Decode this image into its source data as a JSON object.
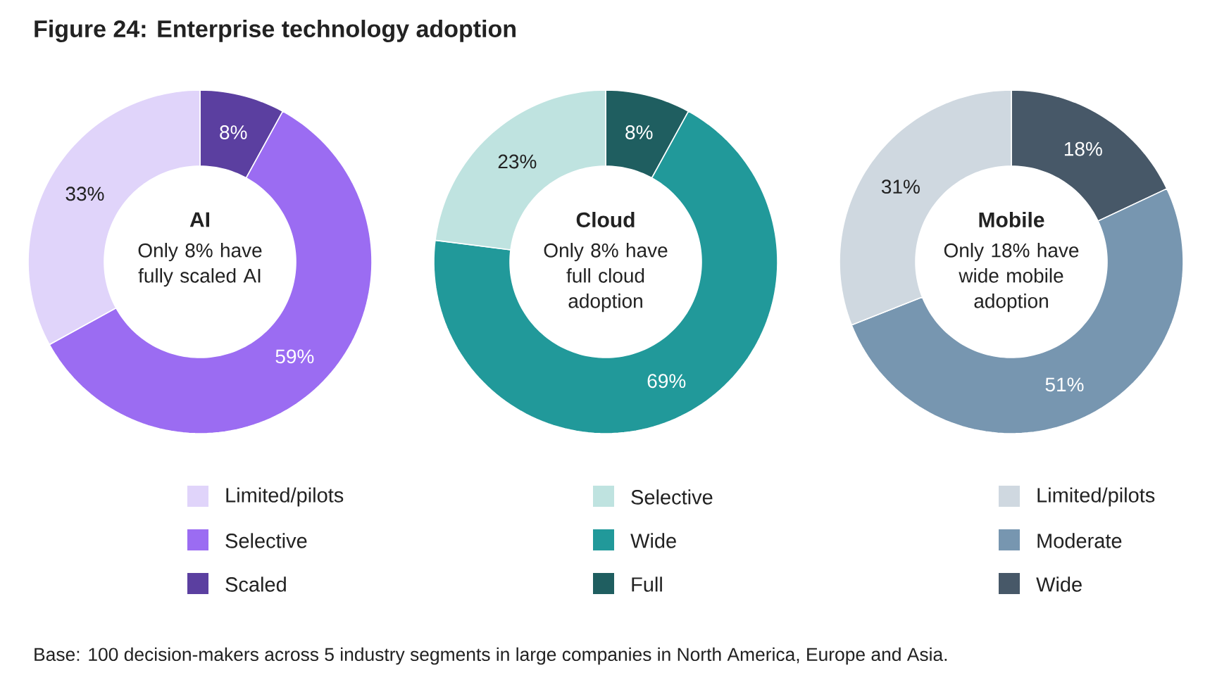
{
  "chart_data": [
    {
      "type": "other",
      "title": "Figure 24: Enterprise technology adoption",
      "annotations": [
        "Base: 100 decision-makers across 5 industry segments in large companies in North America, Europe and Asia."
      ]
    },
    {
      "type": "donut",
      "title": "AI",
      "subtitle": "Only 8% have fully scaled AI",
      "categories": [
        "Limited/pilots",
        "Selective",
        "Scaled"
      ],
      "values": [
        33,
        59,
        8
      ],
      "value_labels": [
        "33%",
        "59%",
        "8%"
      ],
      "colors": [
        "#e0d4fa",
        "#9b6cf2",
        "#5b3fa0"
      ],
      "legend": "bottom"
    },
    {
      "type": "donut",
      "title": "Cloud",
      "subtitle": "Only 8% have full cloud adoption",
      "categories": [
        "Selective",
        "Wide",
        "Full"
      ],
      "values": [
        23,
        69,
        8
      ],
      "value_labels": [
        "23%",
        "69%",
        "8%"
      ],
      "colors": [
        "#bfe3e0",
        "#21999a",
        "#1f5e60"
      ],
      "legend": "bottom"
    },
    {
      "type": "donut",
      "title": "Mobile",
      "subtitle": "Only 18% have wide mobile adoption",
      "categories": [
        "Limited/pilots",
        "Moderate",
        "Wide"
      ],
      "values": [
        31,
        51,
        18
      ],
      "value_labels": [
        "31%",
        "51%",
        "18%"
      ],
      "colors": [
        "#cfd8e0",
        "#7796b0",
        "#475868"
      ],
      "legend": "bottom"
    }
  ]
}
